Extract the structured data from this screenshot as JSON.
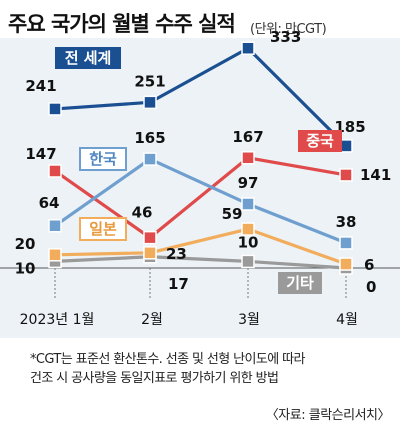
{
  "header": {
    "title": "주요 국가의 월별 수주 실적",
    "unit": "(단위: 만CGT)"
  },
  "footnote": {
    "line1": "*CGT는 표준선 환산톤수. 선종 및 선형 난이도에 따라",
    "line2": "건조 시 공사량을 동일지표로 평가하기 위한 방법",
    "source": "〈자료: 클락슨리서치〉"
  },
  "chart_data": {
    "type": "line",
    "categories": [
      "2023년 1월",
      "2월",
      "3월",
      "4월"
    ],
    "series": [
      {
        "name": "전 세계",
        "values": [
          241,
          251,
          333,
          185
        ],
        "color": "#1a4f92",
        "label_style": "dark-box"
      },
      {
        "name": "한국",
        "values": [
          64,
          165,
          97,
          38
        ],
        "color": "#6f9fcf",
        "label_style": "light-box"
      },
      {
        "name": "중국",
        "values": [
          147,
          46,
          167,
          141
        ],
        "color": "#e04a4a",
        "label_style": "red-box"
      },
      {
        "name": "일본",
        "values": [
          20,
          23,
          59,
          6
        ],
        "color": "#f2ad5c",
        "label_style": "orange-box"
      },
      {
        "name": "기타",
        "values": [
          10,
          17,
          10,
          0
        ],
        "color": "#9a9a9a",
        "label_style": "gray-box"
      }
    ],
    "grid": false,
    "legend": "inline labels"
  }
}
